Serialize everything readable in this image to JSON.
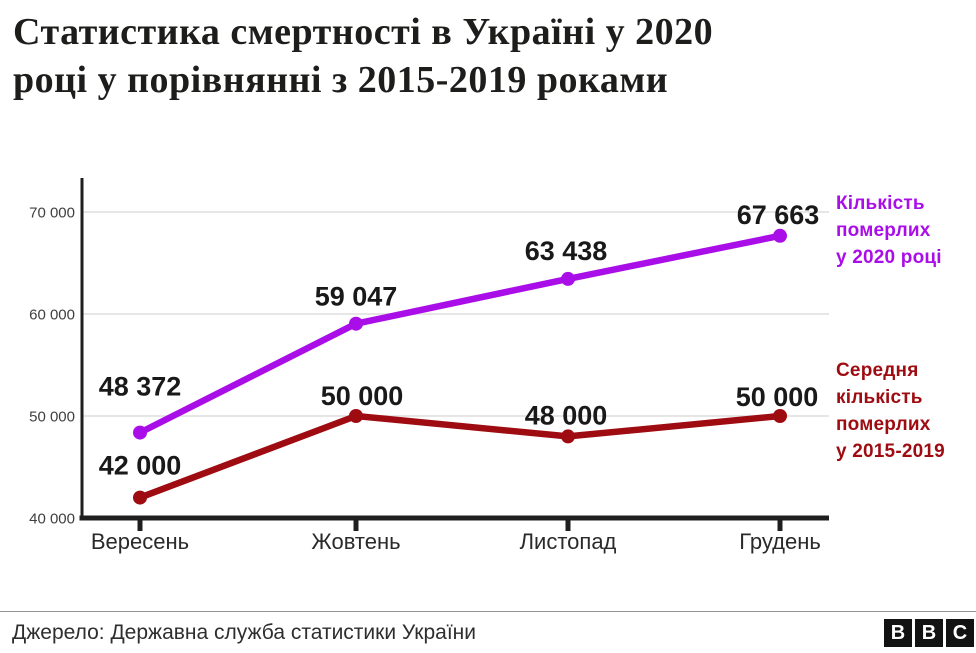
{
  "header": {
    "title": "Статистика смертності в Україні у 2020 році у порівнянні з 2015-2019 роками",
    "title_lines": [
      "Статистика смертності в Україні у 2020",
      "році у порівнянні з 2015-2019 роками"
    ]
  },
  "chart_data": {
    "type": "line",
    "title": "Статистика смертності в Україні у 2020 році у порівнянні з 2015-2019 роками",
    "categories": [
      "Вересень",
      "Жовтень",
      "Листопад",
      "Грудень"
    ],
    "series": [
      {
        "id": "deaths-2020",
        "name": "Кількість померлих у 2020 році",
        "legend_lines": [
          "Кількість",
          "померлих",
          "у 2020 році"
        ],
        "color": "#a90ee8",
        "values": [
          48372,
          59047,
          63438,
          67663
        ],
        "labels": [
          "48 372",
          "59 047",
          "63 438",
          "67 663"
        ]
      },
      {
        "id": "avg-2015-2019",
        "name": "Середня кількість померлих у 2015-2019",
        "legend_lines": [
          "Середня",
          "кількість",
          "померлих",
          "у 2015-2019"
        ],
        "color": "#9e0b10",
        "values": [
          42000,
          50000,
          48000,
          50000
        ],
        "labels": [
          "42 000",
          "50 000",
          "48 000",
          "50 000"
        ]
      }
    ],
    "y_ticks": [
      {
        "value": 40000,
        "label": "40 000"
      },
      {
        "value": 50000,
        "label": "50 000"
      },
      {
        "value": 60000,
        "label": "60 000"
      },
      {
        "value": 70000,
        "label": "70 000"
      }
    ],
    "ylim": [
      40000,
      73300
    ],
    "xlabel": "",
    "ylabel": "",
    "grid": true,
    "legend_position": "right"
  },
  "footer": {
    "source": "Джерело: Державна служба статистики України",
    "logo_letters": [
      "B",
      "B",
      "C"
    ]
  }
}
